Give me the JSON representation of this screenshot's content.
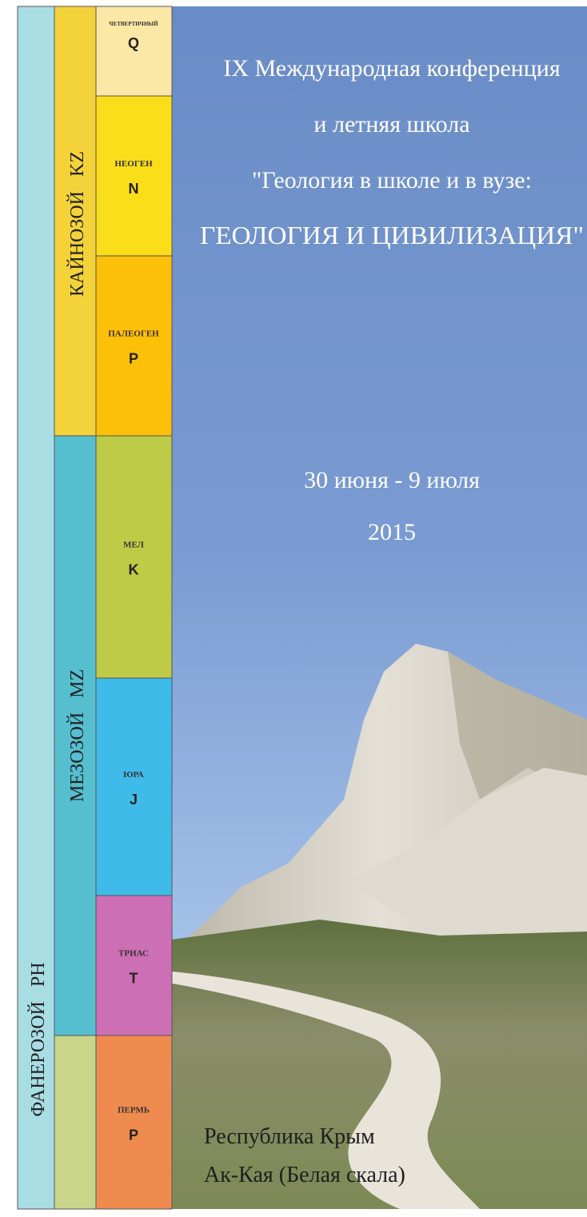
{
  "eon": {
    "name": "ФАНЕРОЗОЙ",
    "code": "PH"
  },
  "eras": [
    {
      "name": "КАЙНОЗОЙ",
      "code": "KZ"
    },
    {
      "name": "МЕЗОЗОЙ",
      "code": "MZ"
    }
  ],
  "periods": [
    {
      "name": "ЧЕТВЕРТИЧНЫЙ",
      "code": "Q"
    },
    {
      "name": "НЕОГЕН",
      "code": "N"
    },
    {
      "name": "ПАЛЕОГЕН",
      "code": "P"
    },
    {
      "name": "МЕЛ",
      "code": "K"
    },
    {
      "name": "ЮРА",
      "code": "J"
    },
    {
      "name": "ТРИАС",
      "code": "T"
    },
    {
      "name": "ПЕРМЬ",
      "code": "P"
    }
  ],
  "header": {
    "lines": [
      "IX Международная конференция",
      "и летняя школа",
      "\"Геология в школе и в вузе:",
      "ГЕОЛОГИЯ И ЦИВИЛИЗАЦИЯ\""
    ]
  },
  "dates": {
    "range": "30 июня - 9 июля",
    "year": "2015"
  },
  "location": {
    "lines": [
      "Республика Крым",
      "Ак-Кая (Белая скала)"
    ]
  }
}
